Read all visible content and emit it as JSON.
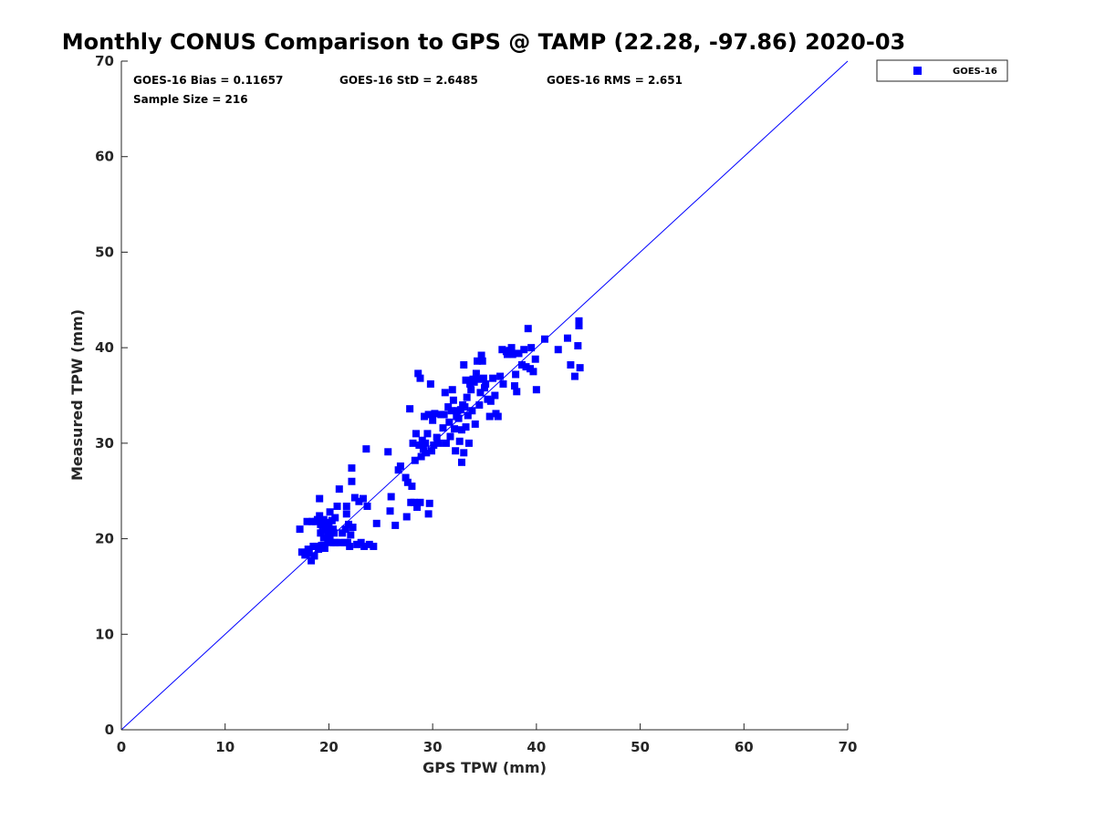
{
  "chart_data": {
    "type": "scatter",
    "title": "Monthly CONUS Comparison to GPS @ TAMP (22.28, -97.86) 2020-03",
    "xlabel": "GPS TPW (mm)",
    "ylabel": "Measured TPW (mm)",
    "xlim": [
      0,
      70
    ],
    "ylim": [
      0,
      70
    ],
    "xticks": [
      "0",
      "10",
      "20",
      "30",
      "40",
      "50",
      "60",
      "70"
    ],
    "yticks": [
      "0",
      "10",
      "20",
      "30",
      "40",
      "50",
      "60",
      "70"
    ],
    "grid": false,
    "legend_position": "outside-top-right",
    "reference_line": {
      "from": [
        0,
        0
      ],
      "to": [
        70,
        70
      ],
      "color": "#0000ff"
    },
    "stats": {
      "bias": "GOES-16 Bias = 0.11657",
      "std": "GOES-16 StD = 2.6485",
      "rms": "GOES-16 RMS = 2.651",
      "sample_size": "Sample Size = 216"
    },
    "series": [
      {
        "name": "GOES-16",
        "color": "#0000ff",
        "marker": "square",
        "points": [
          [
            17.2,
            21.0
          ],
          [
            17.4,
            18.6
          ],
          [
            17.7,
            18.3
          ],
          [
            17.9,
            21.8
          ],
          [
            18.0,
            18.9
          ],
          [
            18.1,
            18.5
          ],
          [
            18.3,
            17.7
          ],
          [
            18.4,
            21.8
          ],
          [
            18.5,
            19.2
          ],
          [
            18.6,
            18.2
          ],
          [
            18.7,
            21.8
          ],
          [
            18.8,
            19.2
          ],
          [
            18.9,
            22.0
          ],
          [
            19.0,
            18.9
          ],
          [
            19.1,
            24.2
          ],
          [
            19.1,
            22.4
          ],
          [
            19.2,
            21.5
          ],
          [
            19.2,
            20.6
          ],
          [
            19.3,
            19.3
          ],
          [
            19.4,
            21.0
          ],
          [
            19.5,
            22.0
          ],
          [
            19.5,
            20.1
          ],
          [
            19.6,
            19.0
          ],
          [
            19.7,
            21.7
          ],
          [
            19.8,
            20.9
          ],
          [
            19.9,
            20.4
          ],
          [
            19.9,
            19.7
          ],
          [
            20.0,
            21.5
          ],
          [
            20.1,
            22.8
          ],
          [
            20.1,
            20.2
          ],
          [
            20.2,
            19.6
          ],
          [
            20.3,
            21.9
          ],
          [
            20.4,
            21.0
          ],
          [
            20.5,
            20.6
          ],
          [
            20.5,
            19.6
          ],
          [
            20.6,
            22.2
          ],
          [
            20.7,
            19.6
          ],
          [
            20.8,
            23.4
          ],
          [
            21.0,
            25.2
          ],
          [
            21.1,
            19.6
          ],
          [
            21.3,
            20.6
          ],
          [
            21.5,
            19.6
          ],
          [
            21.6,
            21.0
          ],
          [
            21.7,
            22.6
          ],
          [
            21.7,
            23.4
          ],
          [
            21.8,
            19.6
          ],
          [
            21.9,
            21.5
          ],
          [
            22.0,
            19.2
          ],
          [
            22.1,
            20.4
          ],
          [
            22.2,
            27.4
          ],
          [
            22.2,
            26.0
          ],
          [
            22.3,
            21.2
          ],
          [
            22.5,
            24.3
          ],
          [
            22.7,
            19.4
          ],
          [
            22.9,
            23.9
          ],
          [
            23.1,
            19.6
          ],
          [
            23.3,
            24.2
          ],
          [
            23.4,
            19.2
          ],
          [
            23.6,
            29.4
          ],
          [
            23.7,
            23.4
          ],
          [
            23.9,
            19.4
          ],
          [
            24.3,
            19.2
          ],
          [
            24.6,
            21.6
          ],
          [
            25.7,
            29.1
          ],
          [
            25.9,
            22.9
          ],
          [
            26.0,
            24.4
          ],
          [
            26.4,
            21.4
          ],
          [
            26.7,
            27.2
          ],
          [
            26.9,
            27.6
          ],
          [
            27.4,
            26.4
          ],
          [
            27.5,
            22.3
          ],
          [
            27.6,
            25.9
          ],
          [
            27.8,
            33.6
          ],
          [
            27.9,
            23.8
          ],
          [
            28.0,
            25.5
          ],
          [
            28.1,
            30.0
          ],
          [
            28.2,
            23.8
          ],
          [
            28.3,
            28.2
          ],
          [
            28.4,
            31.0
          ],
          [
            28.5,
            23.3
          ],
          [
            28.6,
            37.3
          ],
          [
            28.7,
            29.8
          ],
          [
            28.8,
            36.8
          ],
          [
            28.8,
            23.8
          ],
          [
            28.9,
            28.6
          ],
          [
            29.0,
            30.3
          ],
          [
            29.1,
            29.4
          ],
          [
            29.2,
            32.8
          ],
          [
            29.3,
            30.0
          ],
          [
            29.4,
            29.0
          ],
          [
            29.5,
            31.0
          ],
          [
            29.6,
            33.0
          ],
          [
            29.6,
            22.6
          ],
          [
            29.7,
            23.7
          ],
          [
            29.8,
            36.2
          ],
          [
            29.9,
            29.2
          ],
          [
            30.0,
            32.4
          ],
          [
            30.1,
            29.8
          ],
          [
            30.2,
            33.1
          ],
          [
            30.4,
            30.6
          ],
          [
            30.6,
            30.0
          ],
          [
            30.8,
            33.0
          ],
          [
            31.0,
            31.6
          ],
          [
            31.1,
            33.0
          ],
          [
            31.2,
            35.3
          ],
          [
            31.3,
            30.0
          ],
          [
            31.5,
            33.8
          ],
          [
            31.6,
            32.2
          ],
          [
            31.7,
            30.7
          ],
          [
            31.8,
            33.4
          ],
          [
            31.9,
            35.6
          ],
          [
            32.0,
            34.5
          ],
          [
            32.1,
            31.5
          ],
          [
            32.2,
            29.2
          ],
          [
            32.3,
            32.8
          ],
          [
            32.4,
            33.4
          ],
          [
            32.5,
            32.6
          ],
          [
            32.6,
            30.2
          ],
          [
            32.7,
            33.5
          ],
          [
            32.8,
            28.0
          ],
          [
            32.8,
            31.4
          ],
          [
            32.9,
            34.0
          ],
          [
            33.0,
            38.2
          ],
          [
            33.0,
            29.0
          ],
          [
            33.1,
            33.8
          ],
          [
            33.2,
            36.6
          ],
          [
            33.2,
            31.7
          ],
          [
            33.3,
            34.8
          ],
          [
            33.4,
            32.9
          ],
          [
            33.5,
            30.0
          ],
          [
            33.6,
            36.2
          ],
          [
            33.7,
            35.6
          ],
          [
            33.8,
            33.4
          ],
          [
            33.9,
            36.7
          ],
          [
            34.0,
            36.4
          ],
          [
            34.1,
            32.0
          ],
          [
            34.2,
            37.3
          ],
          [
            34.3,
            38.6
          ],
          [
            34.4,
            36.7
          ],
          [
            34.5,
            34.0
          ],
          [
            34.6,
            35.3
          ],
          [
            34.7,
            39.2
          ],
          [
            34.8,
            38.6
          ],
          [
            34.9,
            36.8
          ],
          [
            35.0,
            35.8
          ],
          [
            35.1,
            36.2
          ],
          [
            35.3,
            34.6
          ],
          [
            35.5,
            32.8
          ],
          [
            35.6,
            34.4
          ],
          [
            35.8,
            36.8
          ],
          [
            36.0,
            35.0
          ],
          [
            36.1,
            33.1
          ],
          [
            36.3,
            32.8
          ],
          [
            36.5,
            37.0
          ],
          [
            36.7,
            39.8
          ],
          [
            36.8,
            36.2
          ],
          [
            37.1,
            39.6
          ],
          [
            37.2,
            39.3
          ],
          [
            37.4,
            39.7
          ],
          [
            37.6,
            40.0
          ],
          [
            37.7,
            39.3
          ],
          [
            37.9,
            36.0
          ],
          [
            38.0,
            37.2
          ],
          [
            38.1,
            35.4
          ],
          [
            38.3,
            39.4
          ],
          [
            38.6,
            38.2
          ],
          [
            38.8,
            39.8
          ],
          [
            39.0,
            38.0
          ],
          [
            39.2,
            42.0
          ],
          [
            39.4,
            37.8
          ],
          [
            39.5,
            40.0
          ],
          [
            39.7,
            37.5
          ],
          [
            39.9,
            38.8
          ],
          [
            40.0,
            35.6
          ],
          [
            40.8,
            40.9
          ],
          [
            42.1,
            39.8
          ],
          [
            43.0,
            41.0
          ],
          [
            43.3,
            38.2
          ],
          [
            43.7,
            37.0
          ],
          [
            44.0,
            40.2
          ],
          [
            44.1,
            42.8
          ],
          [
            44.1,
            42.3
          ],
          [
            44.2,
            37.9
          ]
        ]
      }
    ]
  }
}
